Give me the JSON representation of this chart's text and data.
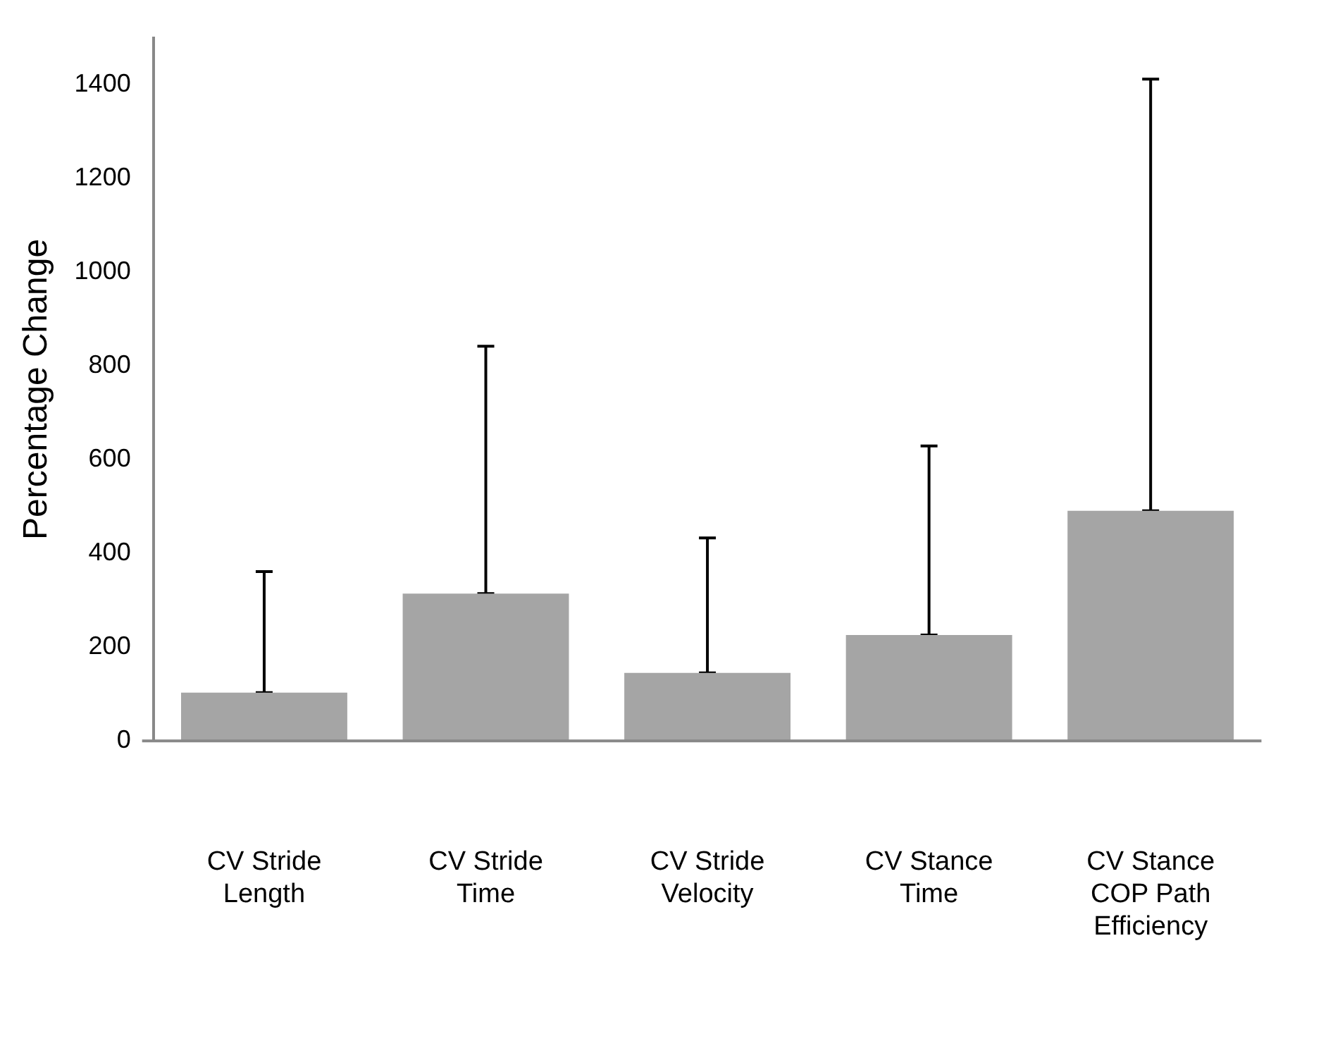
{
  "chart_data": {
    "type": "bar",
    "ylabel": "Percentage Change",
    "categories": [
      "CV Stride Length",
      "CV Stride Time",
      "CV Stride Velocity",
      "CV Stance Time",
      "CV Stance COP Path Efficiency"
    ],
    "values": [
      103,
      314,
      145,
      226,
      491
    ],
    "errors": [
      [
        103,
        361
      ],
      [
        314,
        842
      ],
      [
        145,
        433
      ],
      [
        226,
        629
      ],
      [
        491,
        1412
      ]
    ],
    "color": "#a5a5a5",
    "ylim": [
      0,
      1500
    ],
    "yticks": [
      0,
      200,
      400,
      600,
      800,
      1000,
      1200,
      1400
    ],
    "grid": false,
    "legend": false
  }
}
